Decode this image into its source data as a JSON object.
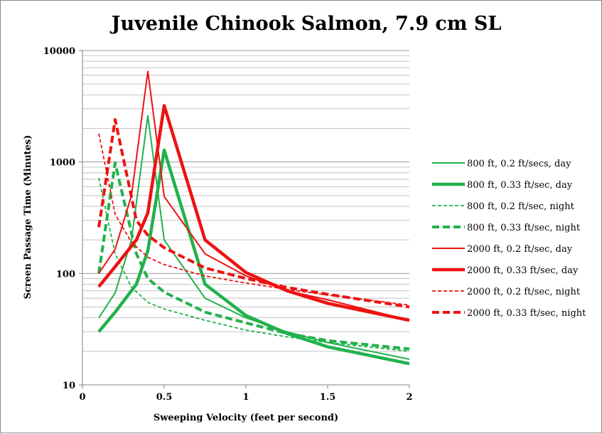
{
  "chart_data": {
    "type": "line",
    "title": "Juvenile Chinook Salmon, 7.9 cm SL",
    "xlabel": "Sweeping Velocity (feet per second)",
    "ylabel": "Screen Passage Time (Minutes)",
    "xlim": [
      0,
      2
    ],
    "ylim": [
      10,
      10000
    ],
    "y_scale": "log",
    "grid": "horizontal major and minor",
    "legend_position": "right",
    "x_ticks": [
      "0",
      "0.5",
      "1",
      "1.5",
      "2"
    ],
    "y_ticks": [
      "10",
      "100",
      "1000",
      "10000"
    ],
    "series": [
      {
        "name": "800 ft, 0.2 ft/secs, day",
        "color": "#22b14c",
        "style": "solid-thin",
        "x": [
          0.1,
          0.2,
          0.3,
          0.4,
          0.5,
          0.75,
          1,
          1.25,
          1.5,
          2
        ],
        "y": [
          40,
          67,
          200,
          2600,
          200,
          60,
          40,
          30,
          24,
          17
        ]
      },
      {
        "name": "800 ft, 0.33 ft/sec, day",
        "color": "#22b14c",
        "style": "solid-thick",
        "x": [
          0.1,
          0.2,
          0.33,
          0.4,
          0.5,
          0.75,
          1,
          1.25,
          1.5,
          2
        ],
        "y": [
          30,
          45,
          80,
          160,
          1280,
          80,
          42,
          29,
          22,
          15.5
        ]
      },
      {
        "name": "800 ft, 0.2 ft/sec, night",
        "color": "#22b14c",
        "style": "dashed-thin",
        "x": [
          0.1,
          0.2,
          0.3,
          0.4,
          0.5,
          0.75,
          1,
          1.25,
          1.5,
          2
        ],
        "y": [
          720,
          150,
          75,
          55,
          48,
          38,
          31,
          27,
          24,
          20
        ]
      },
      {
        "name": "800 ft, 0.33 ft/sec, night",
        "color": "#22b14c",
        "style": "dashed-thick",
        "x": [
          0.1,
          0.2,
          0.33,
          0.4,
          0.5,
          0.75,
          1,
          1.25,
          1.5,
          2
        ],
        "y": [
          100,
          980,
          150,
          90,
          68,
          45,
          36,
          29,
          25,
          21
        ]
      },
      {
        "name": "2000 ft, 0.2 ft/sec, day",
        "color": "#ee1111",
        "style": "solid-thin",
        "x": [
          0.1,
          0.2,
          0.3,
          0.4,
          0.5,
          0.75,
          1,
          1.25,
          1.5,
          2
        ],
        "y": [
          100,
          165,
          500,
          6500,
          490,
          150,
          95,
          70,
          58,
          38
        ]
      },
      {
        "name": "2000 ft, 0.33 ft/sec, day",
        "color": "#ee1111",
        "style": "solid-thick",
        "x": [
          0.1,
          0.2,
          0.33,
          0.4,
          0.5,
          0.75,
          1,
          1.25,
          1.5,
          2
        ],
        "y": [
          76,
          115,
          200,
          350,
          3200,
          200,
          102,
          70,
          54,
          38
        ]
      },
      {
        "name": "2000 ft, 0.2 ft/sec, night",
        "color": "#ee1111",
        "style": "dashed-thin",
        "x": [
          0.1,
          0.2,
          0.3,
          0.4,
          0.5,
          0.75,
          1,
          1.25,
          1.5,
          2
        ],
        "y": [
          1800,
          340,
          190,
          140,
          120,
          95,
          82,
          72,
          64,
          52
        ]
      },
      {
        "name": "2000 ft, 0.33 ft/sec, night",
        "color": "#ee1111",
        "style": "dashed-thick",
        "x": [
          0.1,
          0.2,
          0.33,
          0.4,
          0.5,
          0.75,
          1,
          1.25,
          1.5,
          2
        ],
        "y": [
          260,
          2400,
          300,
          220,
          170,
          112,
          90,
          75,
          65,
          50
        ]
      }
    ]
  }
}
